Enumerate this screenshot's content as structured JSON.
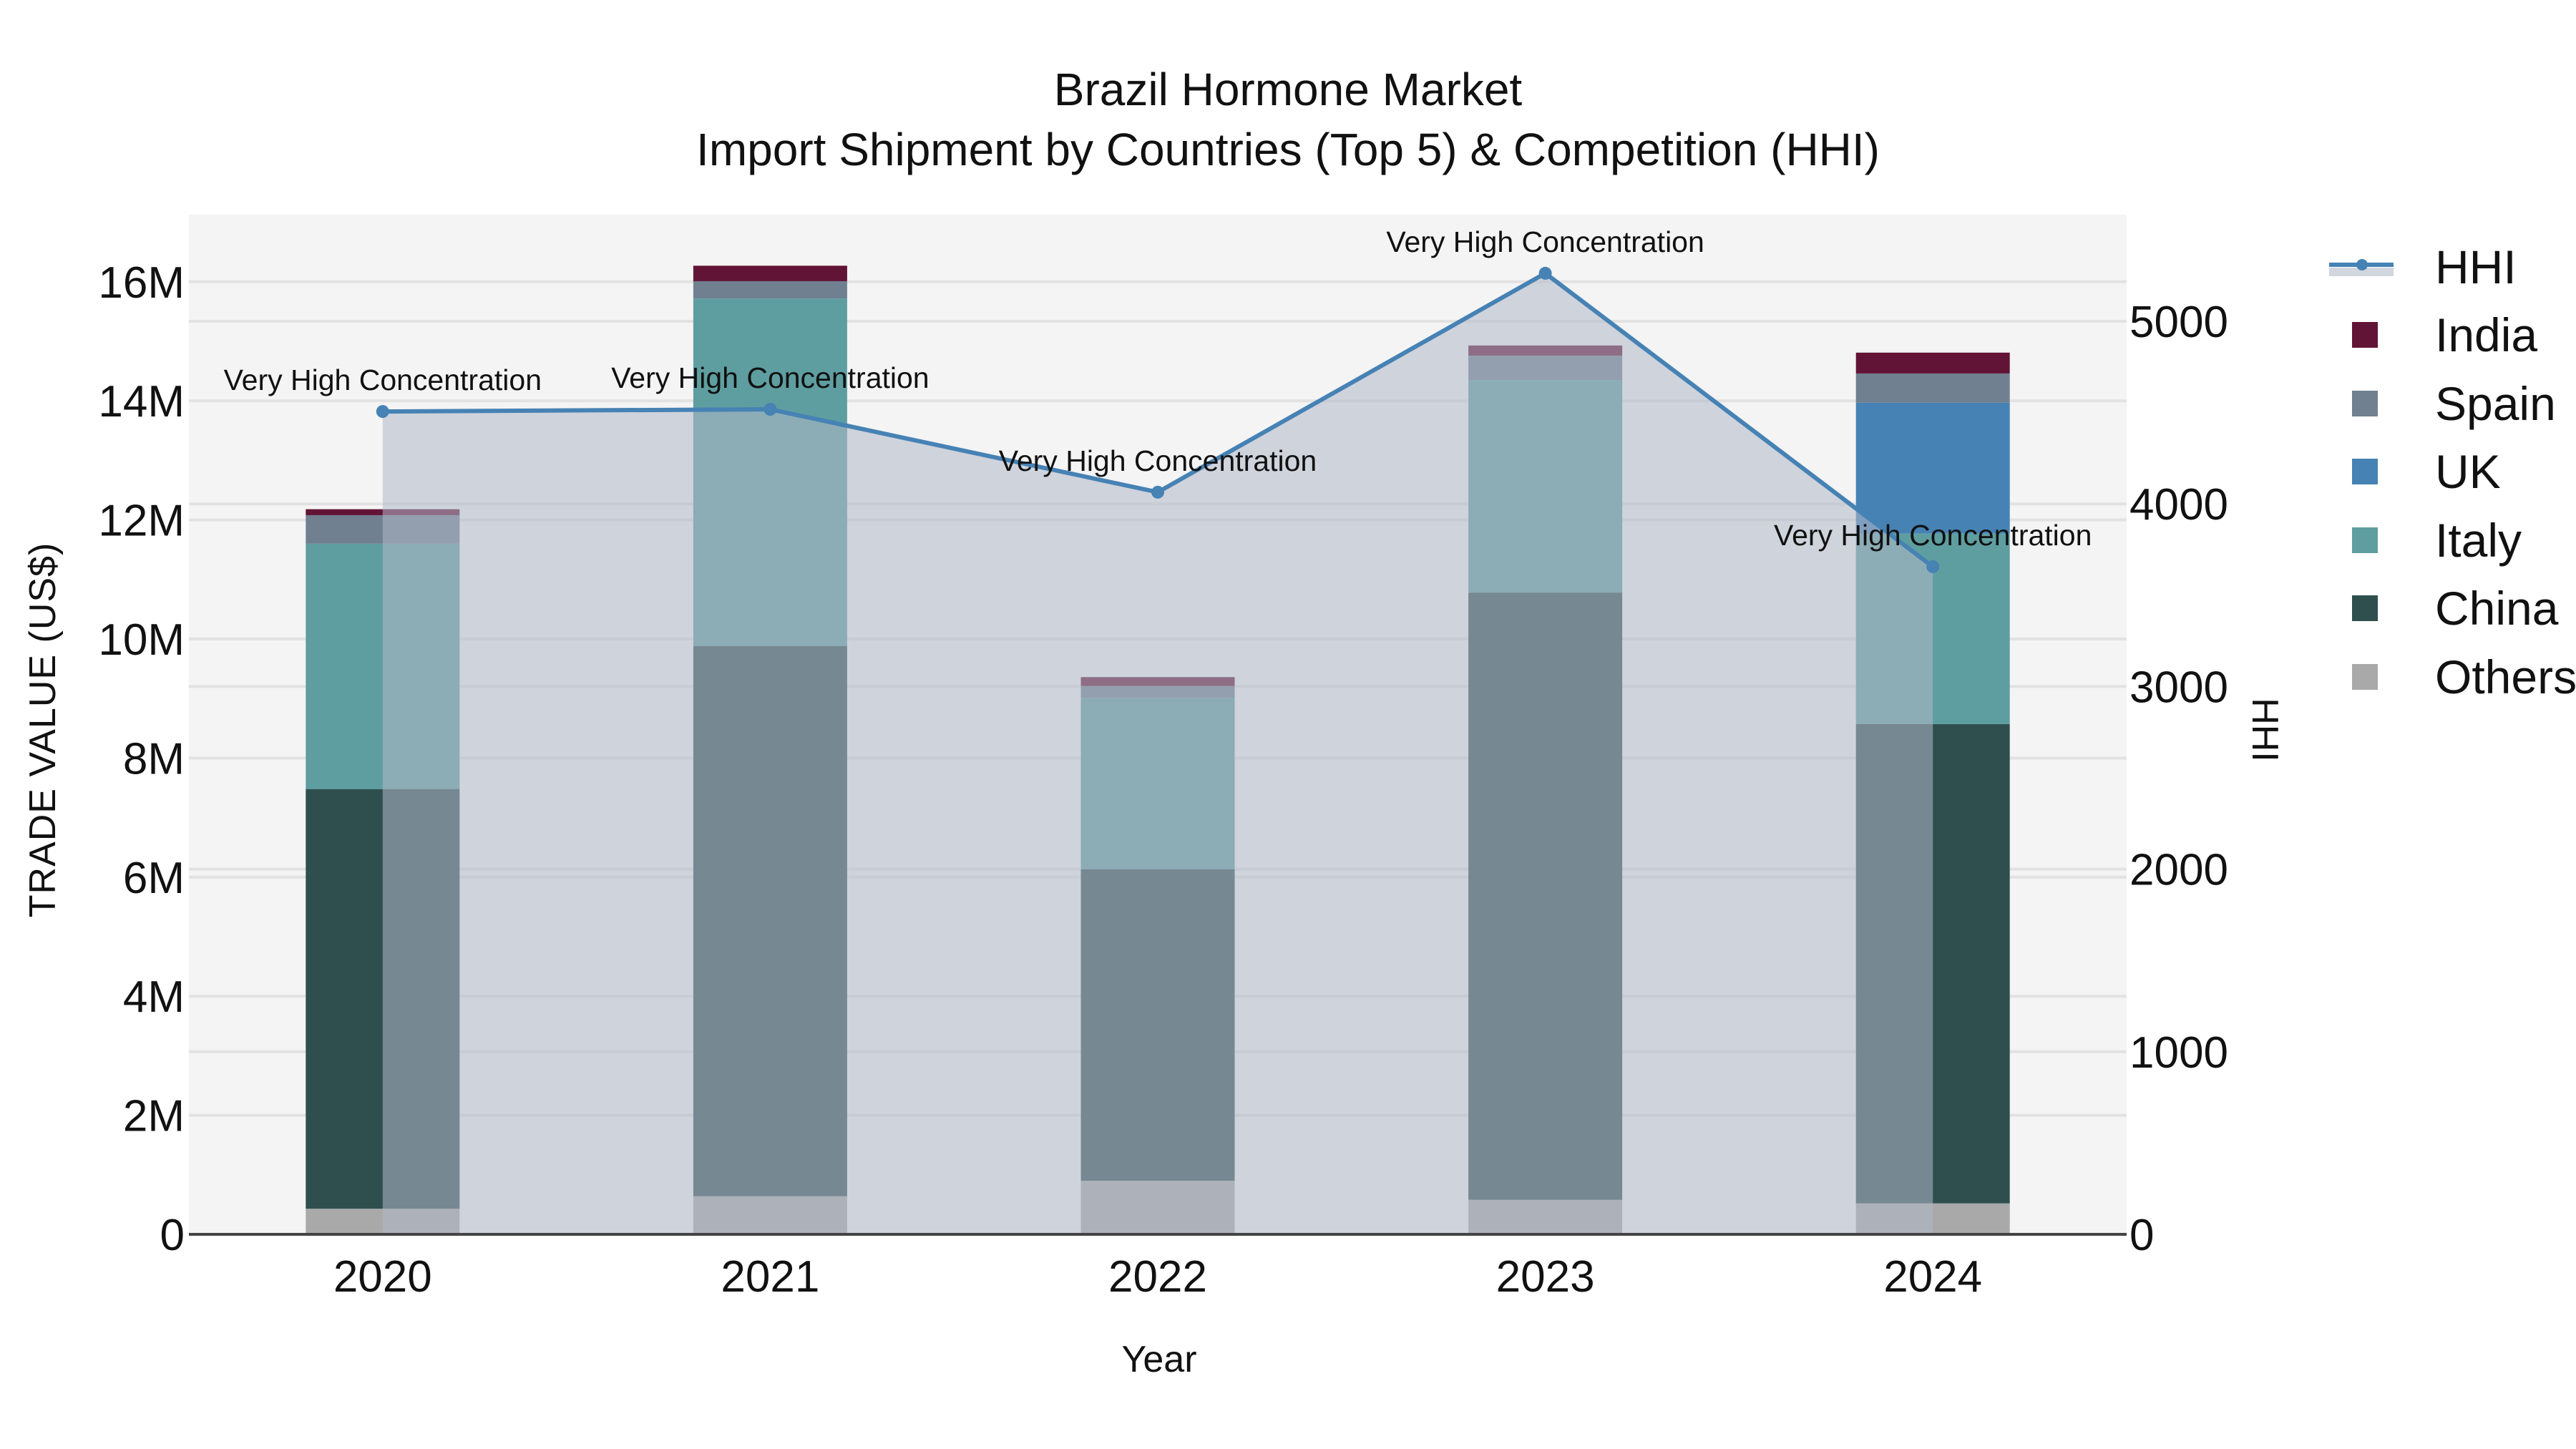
{
  "title": {
    "line1": "Brazil Hormone Market",
    "line2": "Import Shipment by Countries (Top 5) & Competition (HHI)"
  },
  "axes": {
    "x_title": "Year",
    "y_title": "TRADE VALUE (US$)",
    "y2_title": "HHI",
    "y_ticks": [
      "0",
      "2M",
      "4M",
      "6M",
      "8M",
      "10M",
      "12M",
      "14M",
      "16M"
    ],
    "y2_ticks": [
      "0",
      "1000",
      "2000",
      "3000",
      "4000",
      "5000"
    ]
  },
  "legend": {
    "items": [
      {
        "label": "HHI",
        "type": "line",
        "color": "#4682b4"
      },
      {
        "label": "India",
        "type": "box",
        "color": "#621436"
      },
      {
        "label": "Spain",
        "type": "box",
        "color": "#708090"
      },
      {
        "label": "UK",
        "type": "box",
        "color": "#4682b4"
      },
      {
        "label": "Italy",
        "type": "box",
        "color": "#5f9ea0"
      },
      {
        "label": "China",
        "type": "box",
        "color": "#2f4f4f"
      },
      {
        "label": "Others",
        "type": "box",
        "color": "#a9a9a9"
      }
    ]
  },
  "colors": {
    "plot_bg": "#f4f4f4",
    "grid": "#e2e2e2",
    "hhi_line": "#4682b4",
    "hhi_fill": "rgba(176,184,200,0.55)",
    "India": "#621436",
    "Spain": "#708090",
    "UK": "#4682b4",
    "Italy": "#5f9ea0",
    "China": "#2f4f4f",
    "Others": "#a9a9a9"
  },
  "chart_data": {
    "type": "bar",
    "subtype": "stacked bar with secondary-axis line (HHI)",
    "title": "Brazil Hormone Market — Import Shipment by Countries (Top 5) & Competition (HHI)",
    "xlabel": "Year",
    "ylabel": "TRADE VALUE (US$)",
    "y2label": "HHI",
    "categories": [
      "2020",
      "2021",
      "2022",
      "2023",
      "2024"
    ],
    "ylim": [
      0,
      17100000
    ],
    "y2lim": [
      0,
      5490
    ],
    "stack_order_bottom_to_top": [
      "Others",
      "China",
      "Italy",
      "UK",
      "Spain",
      "India"
    ],
    "series": [
      {
        "name": "Others",
        "values": [
          430000,
          640000,
          900000,
          580000,
          520000
        ]
      },
      {
        "name": "China",
        "values": [
          7050000,
          9240000,
          5230000,
          10200000,
          8050000
        ]
      },
      {
        "name": "Italy",
        "values": [
          4120000,
          5840000,
          2880000,
          3570000,
          3200000
        ]
      },
      {
        "name": "UK",
        "values": [
          0,
          0,
          0,
          0,
          2200000
        ]
      },
      {
        "name": "Spain",
        "values": [
          480000,
          290000,
          200000,
          410000,
          490000
        ]
      },
      {
        "name": "India",
        "values": [
          100000,
          260000,
          150000,
          170000,
          350000
        ]
      }
    ],
    "totals": [
      12180000,
      16270000,
      9360000,
      14930000,
      14810000
    ],
    "line_series": {
      "name": "HHI",
      "axis": "y2",
      "values": [
        4506,
        4518,
        4064,
        5263,
        3656
      ],
      "annotations": [
        "Very High Concentration",
        "Very High Concentration",
        "Very High Concentration",
        "Very High Concentration",
        "Very High Concentration"
      ]
    },
    "grid": true,
    "legend_position": "right"
  }
}
